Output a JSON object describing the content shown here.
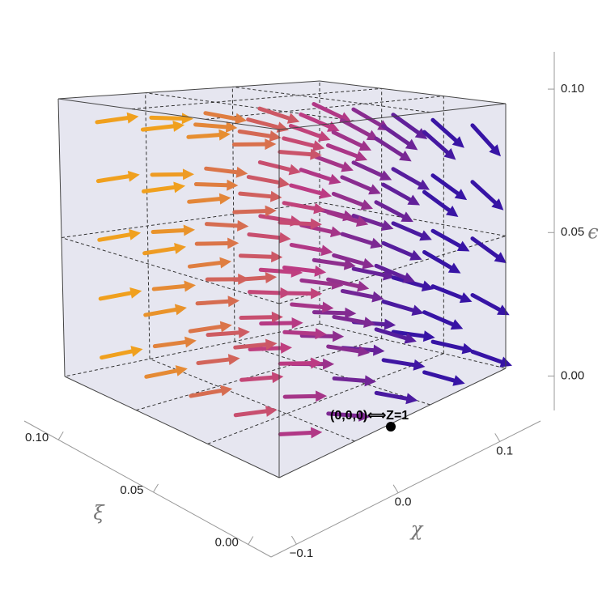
{
  "chart_data": {
    "type": "vector3d",
    "annotation": "(0,0,0)⟺Z=1",
    "xi_axis": {
      "label": "ξ",
      "lim": [
        0.118,
        -0.012
      ],
      "ticks": [
        {
          "value": 0.1,
          "label": "0.10"
        },
        {
          "value": 0.05,
          "label": "0.05"
        },
        {
          "value": 0,
          "label": "0.00"
        }
      ]
    },
    "chi_axis": {
      "label": "χ",
      "lim": [
        -0.125,
        0.14
      ],
      "ticks": [
        {
          "value": -0.1,
          "label": "−0.1"
        },
        {
          "value": 0,
          "label": "0.0"
        },
        0.1
      ]
    },
    "epsilon_axis": {
      "label": "ϵ",
      "lim": [
        -0.012,
        0.113
      ],
      "ticks": [
        {
          "value": 0,
          "label": "0.00"
        },
        {
          "value": 0.05,
          "label": "0.05"
        },
        {
          "value": 0.1,
          "label": "0.10"
        }
      ]
    }
  }
}
